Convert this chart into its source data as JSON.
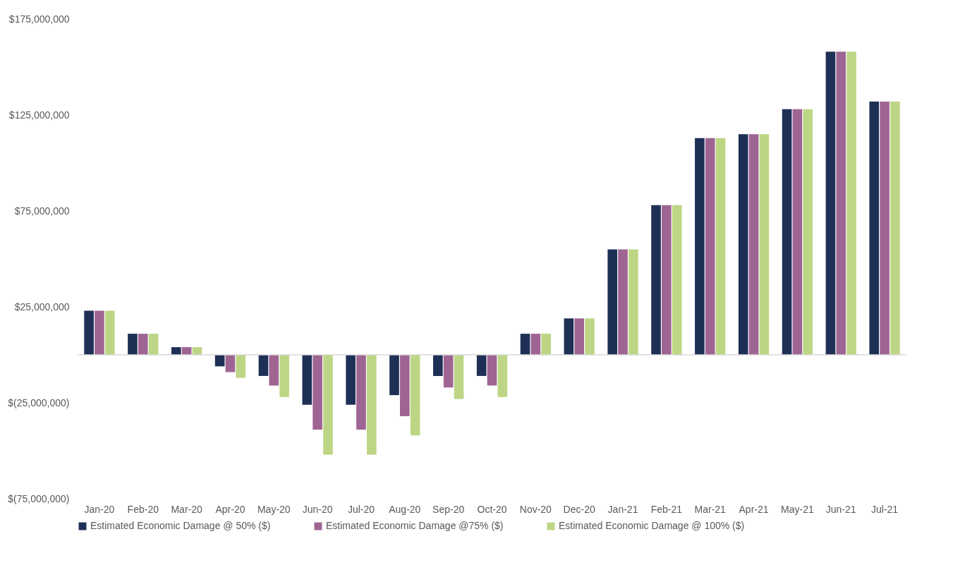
{
  "chart_data": {
    "type": "bar",
    "categories": [
      "Jan-20",
      "Feb-20",
      "Mar-20",
      "Apr-20",
      "May-20",
      "Jun-20",
      "Jul-20",
      "Aug-20",
      "Sep-20",
      "Oct-20",
      "Nov-20",
      "Dec-20",
      "Jan-21",
      "Feb-21",
      "Mar-21",
      "Apr-21",
      "May-21",
      "Jun-21",
      "Jul-21"
    ],
    "series": [
      {
        "name": "Estimated Economic Damage @ 50% ($)",
        "color": "#1f3056",
        "values": [
          23000000,
          11000000,
          4000000,
          -6000000,
          -11000000,
          -26000000,
          -26000000,
          -21000000,
          -11000000,
          -11000000,
          11000000,
          19000000,
          55000000,
          78000000,
          113000000,
          115000000,
          128000000,
          158000000,
          132000000
        ]
      },
      {
        "name": "Estimated Economic Damage @75% ($)",
        "color": "#9e6593",
        "values": [
          23000000,
          11000000,
          4000000,
          -9000000,
          -16000000,
          -39000000,
          -39000000,
          -32000000,
          -17000000,
          -16000000,
          11000000,
          19000000,
          55000000,
          78000000,
          113000000,
          115000000,
          128000000,
          158000000,
          132000000
        ]
      },
      {
        "name": "Estimated Economic Damage @ 100% ($)",
        "color": "#bdd685",
        "values": [
          23000000,
          11000000,
          4000000,
          -12000000,
          -22000000,
          -52000000,
          -52000000,
          -42000000,
          -23000000,
          -22000000,
          11000000,
          19000000,
          55000000,
          78000000,
          113000000,
          115000000,
          128000000,
          158000000,
          132000000
        ]
      }
    ],
    "ylim": [
      -75000000,
      175000000
    ],
    "yticks": [
      {
        "value": -75000000,
        "label": "$(75,000,000)"
      },
      {
        "value": -25000000,
        "label": "$(25,000,000)"
      },
      {
        "value": 25000000,
        "label": "$25,000,000"
      },
      {
        "value": 75000000,
        "label": "$75,000,000"
      },
      {
        "value": 125000000,
        "label": "$125,000,000"
      },
      {
        "value": 175000000,
        "label": "$175,000,000"
      }
    ],
    "grid": false,
    "legend": "bottom"
  }
}
